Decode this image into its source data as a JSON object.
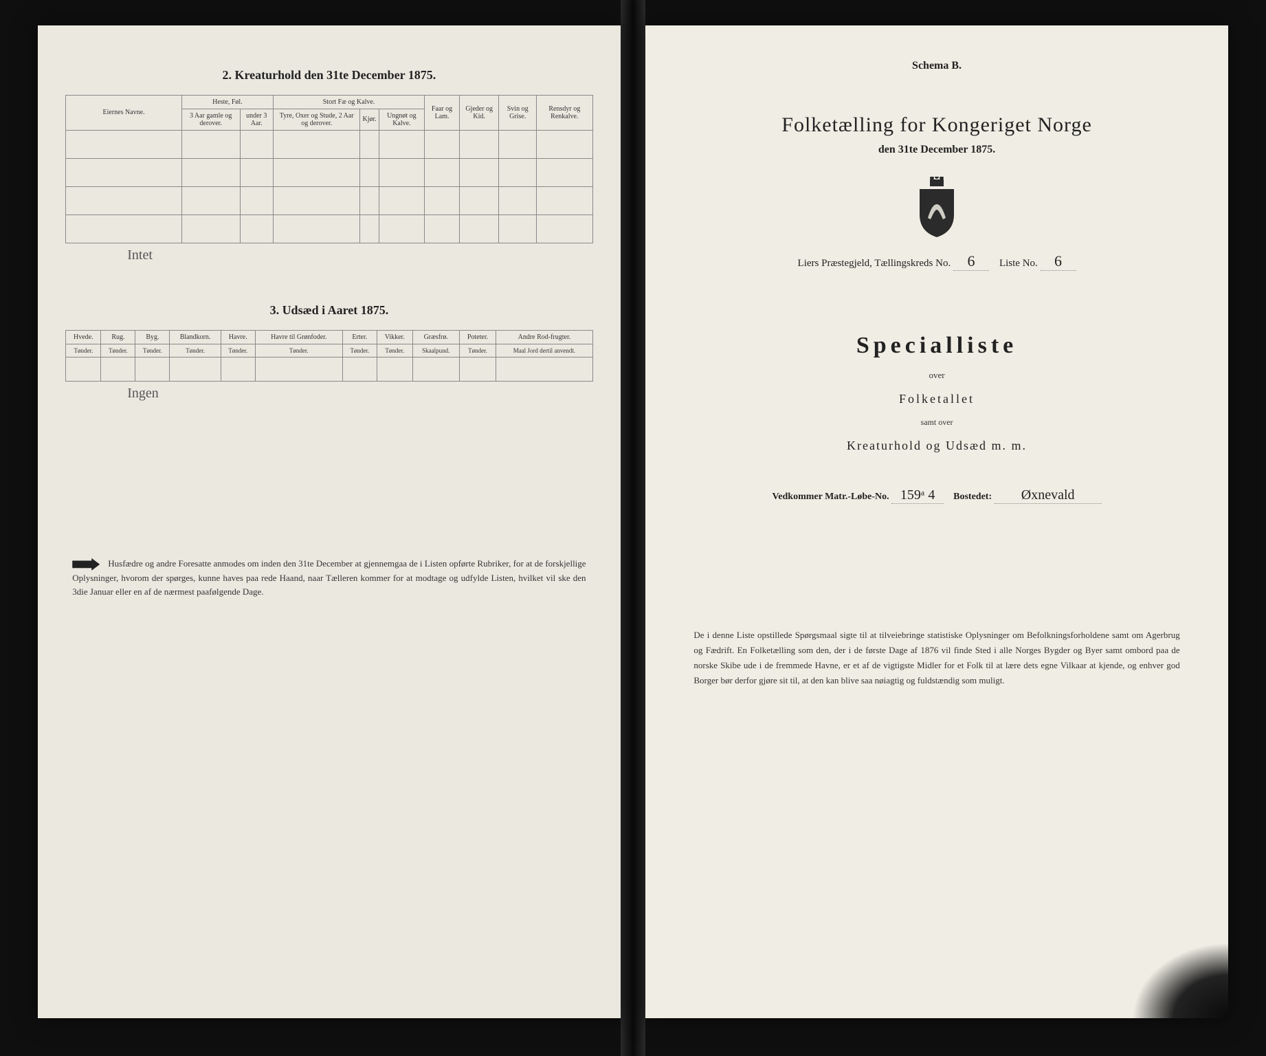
{
  "left_page": {
    "section2": {
      "title": "2. Kreaturhold den 31te December 1875.",
      "col_owner": "Eiernes Navne.",
      "group_heste": "Heste, Føl.",
      "heste_a": "3 Aar gamle og derover.",
      "heste_b": "under 3 Aar.",
      "group_fae": "Stort Fæ og Kalve.",
      "fae_a": "Tyre, Oxer og Stude, 2 Aar og derover.",
      "fae_b": "Kjør.",
      "fae_c": "Ungnøt og Kalve.",
      "col_faar": "Faar og Lam.",
      "col_gjed": "Gjeder og Kid.",
      "col_svin": "Svin og Grise.",
      "col_rens": "Rensdyr og Renkalve.",
      "handwritten": "Intet"
    },
    "section3": {
      "title": "3. Udsæd i Aaret 1875.",
      "cols": [
        {
          "h": "Hvede.",
          "s": "Tønder."
        },
        {
          "h": "Rug.",
          "s": "Tønder."
        },
        {
          "h": "Byg.",
          "s": "Tønder."
        },
        {
          "h": "Blandkorn.",
          "s": "Tønder."
        },
        {
          "h": "Havre.",
          "s": "Tønder."
        },
        {
          "h": "Havre til Grønfoder.",
          "s": "Tønder."
        },
        {
          "h": "Erter.",
          "s": "Tønder."
        },
        {
          "h": "Vikker.",
          "s": "Tønder."
        },
        {
          "h": "Græsfrø.",
          "s": "Skaalpund."
        },
        {
          "h": "Poteter.",
          "s": "Tønder."
        },
        {
          "h": "Andre Rod-frugter.",
          "s": "Maal Jord dertil anvendt."
        }
      ],
      "handwritten": "Ingen"
    },
    "footnote": "Husfædre og andre Foresatte anmodes om inden den 31te December at gjennemgaa de i Listen opførte Rubriker, for at de forskjellige Oplysninger, hvorom der spørges, kunne haves paa rede Haand, naar Tælleren kommer for at modtage og udfylde Listen, hvilket vil ske den 3die Januar eller en af de nærmest paafølgende Dage."
  },
  "right_page": {
    "schema": "Schema B.",
    "title": "Folketælling for Kongeriget Norge",
    "subtitle": "den 31te December 1875.",
    "district_label_1": "Liers Præstegjeld,",
    "district_label_2": "Tællingskreds No.",
    "kreds_no": "6",
    "liste_label": "Liste No.",
    "liste_no": "6",
    "special": "Specialliste",
    "over": "over",
    "folketallet": "Folketallet",
    "samt": "samt over",
    "kreaturhold": "Kreaturhold og Udsæd m. m.",
    "vedkom_label": "Vedkommer Matr.-Løbe-No.",
    "matr_no": "159ᵃ 4",
    "bosted_label": "Bostedet:",
    "bosted": "Øxnevald",
    "footnote": "De i denne Liste opstillede Spørgsmaal sigte til at tilveiebringe statistiske Oplysninger om Befolkningsforholdene samt om Agerbrug og Fædrift. En Folketælling som den, der i de første Dage af 1876 vil finde Sted i alle Norges Bygder og Byer samt ombord paa de norske Skibe ude i de fremmede Havne, er et af de vigtigste Midler for et Folk til at lære dets egne Vilkaar at kjende, og enhver god Borger bør derfor gjøre sit til, at den kan blive saa nøiagtig og fuldstændig som muligt."
  },
  "colors": {
    "paper": "#ebe8e0",
    "paper_right": "#f0ede4",
    "ink": "#222222",
    "border": "#888888",
    "background": "#1a1a1a"
  }
}
